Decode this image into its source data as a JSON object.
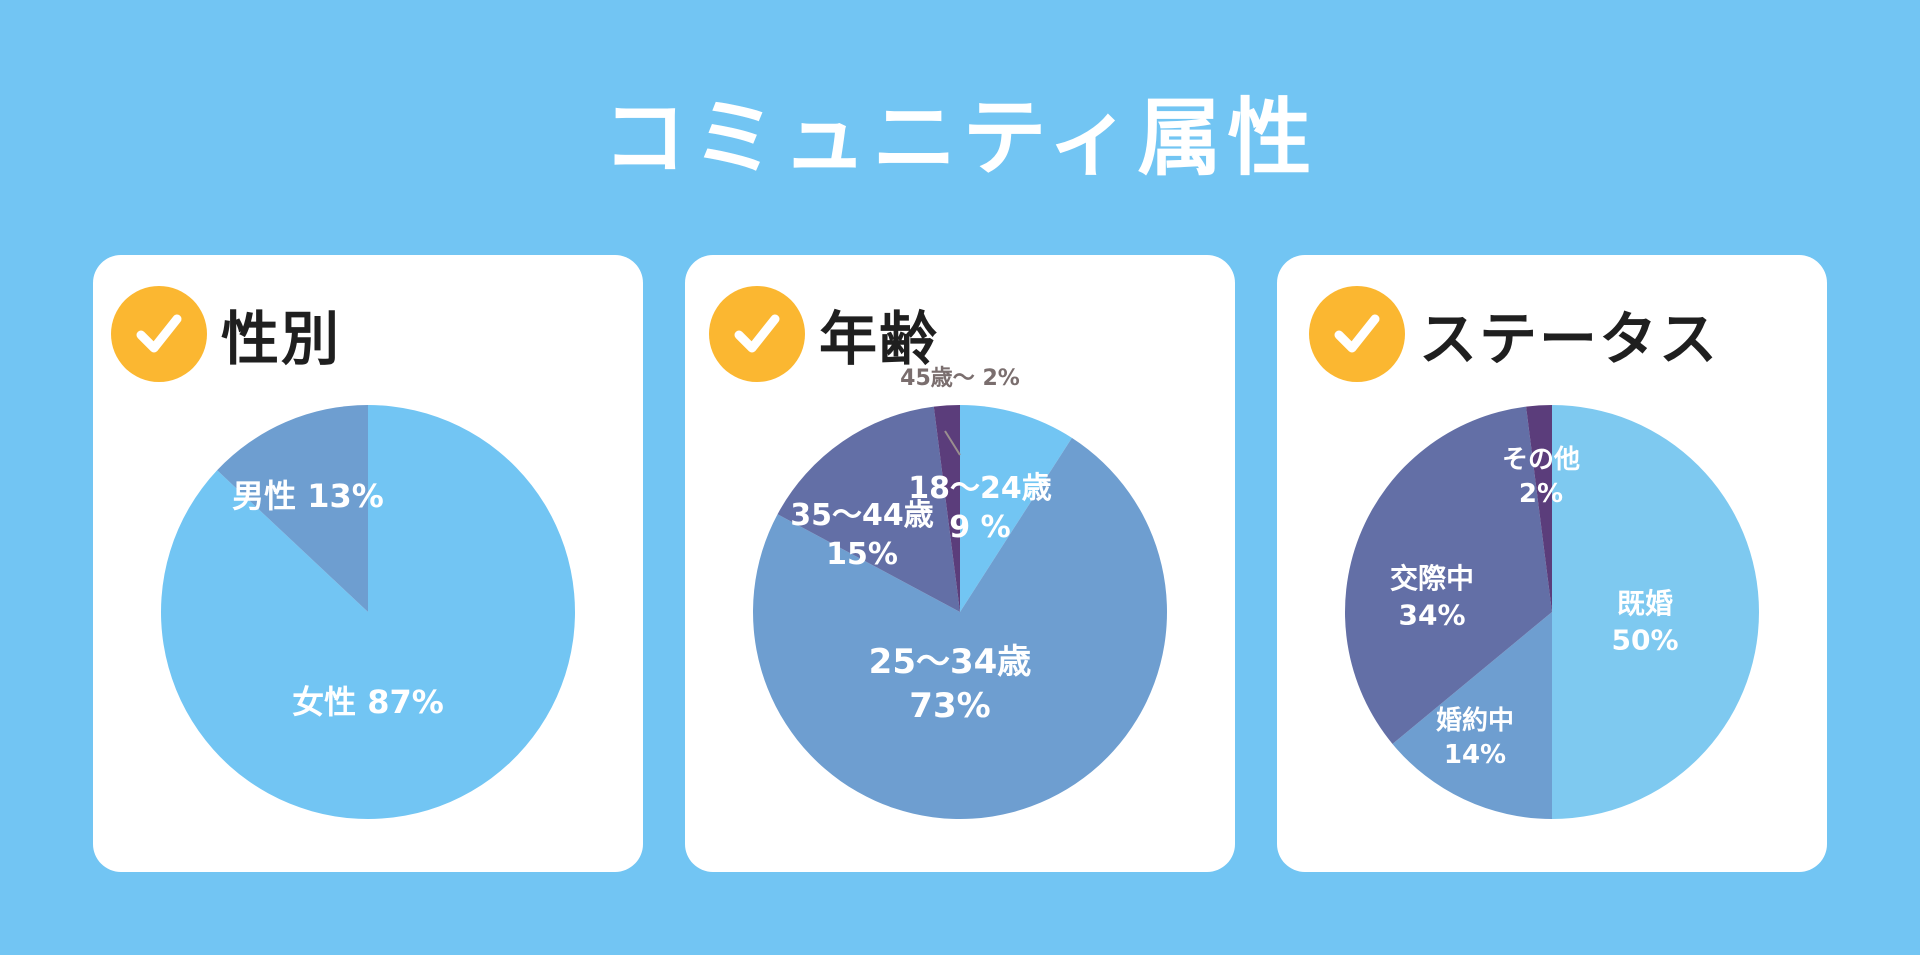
{
  "title": "コミュニティ属性",
  "colors": {
    "background": "#72c5f3",
    "card": "#ffffff",
    "badge": "#fbb731",
    "title_text": "#ffffff",
    "card_title_text": "#1f1f1f"
  },
  "chart_data": [
    {
      "type": "pie",
      "title": "性別",
      "slices": [
        {
          "label": "女性",
          "value": 87,
          "display": "女性 87%",
          "color": "#72c5f3",
          "text_color": "#ffffff"
        },
        {
          "label": "男性",
          "value": 13,
          "display": "男性 13%",
          "color": "#6e9ed0",
          "text_color": "#ffffff"
        }
      ]
    },
    {
      "type": "pie",
      "title": "年齢",
      "slices": [
        {
          "label": "18〜24歳",
          "value": 9,
          "display": "18〜24歳\n9 %",
          "color": "#72c5f3",
          "text_color": "#ffffff"
        },
        {
          "label": "25〜34歳",
          "value": 73,
          "display": "25〜34歳\n73%",
          "color": "#6e9ed0",
          "text_color": "#ffffff"
        },
        {
          "label": "35〜44歳",
          "value": 15,
          "display": "35〜44歳\n15%",
          "color": "#636fa6",
          "text_color": "#ffffff"
        },
        {
          "label": "45歳〜",
          "value": 2,
          "display": "45歳〜 2%",
          "color": "#5b3d7b",
          "text_color": "#7a6e6e"
        }
      ]
    },
    {
      "type": "pie",
      "title": "ステータス",
      "slices": [
        {
          "label": "既婚",
          "value": 50,
          "display": "既婚\n50%",
          "color": "#7ec9f0",
          "text_color": "#ffffff"
        },
        {
          "label": "婚約中",
          "value": 14,
          "display": "婚約中\n14%",
          "color": "#6e9ed0",
          "text_color": "#ffffff"
        },
        {
          "label": "交際中",
          "value": 34,
          "display": "交際中\n34%",
          "color": "#636fa6",
          "text_color": "#ffffff"
        },
        {
          "label": "その他",
          "value": 2,
          "display": "その他\n2%",
          "color": "#5b3d7b",
          "text_color": "#ffffff"
        }
      ]
    }
  ]
}
